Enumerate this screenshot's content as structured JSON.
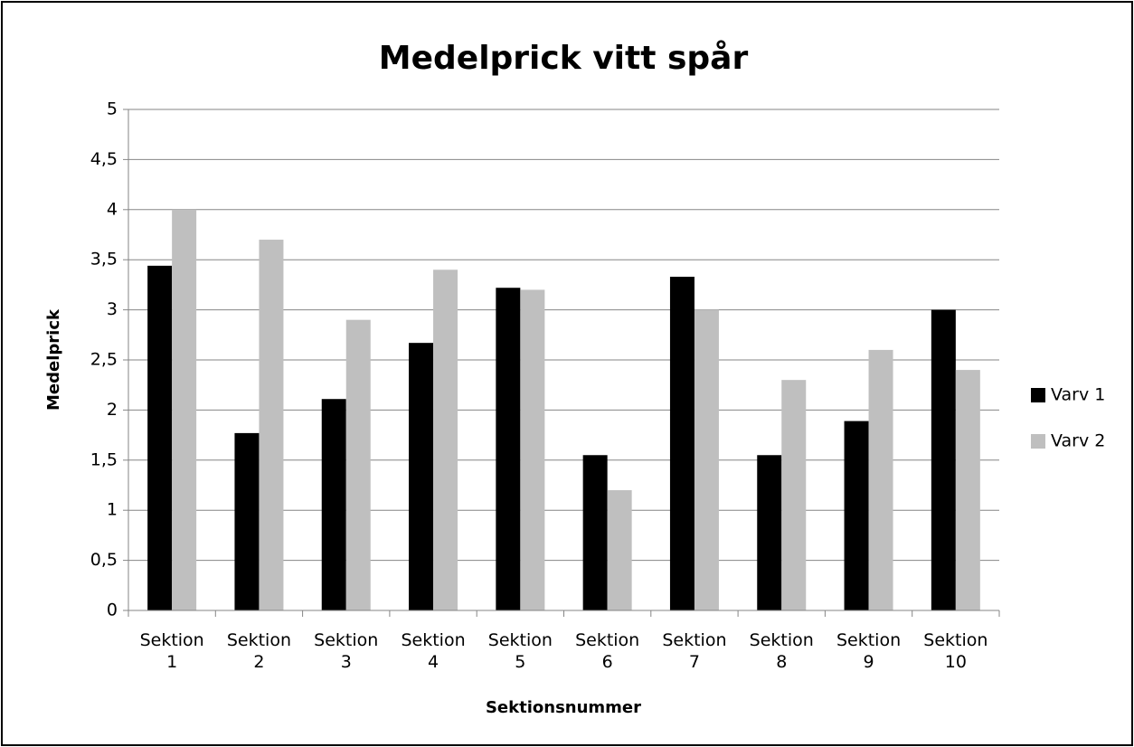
{
  "chart_data": {
    "type": "bar",
    "title": "Medelprick vitt spår",
    "x_label": "Sektionsnummer",
    "y_label": "Medelprick",
    "categories": [
      "Sektion 1",
      "Sektion 2",
      "Sektion 3",
      "Sektion 4",
      "Sektion 5",
      "Sektion 6",
      "Sektion 7",
      "Sektion 8",
      "Sektion 9",
      "Sektion 10"
    ],
    "series": [
      {
        "name": "Varv 1",
        "color": "#000000",
        "values": [
          3.44,
          1.77,
          2.11,
          2.67,
          3.22,
          1.55,
          3.33,
          1.55,
          1.89,
          3.0
        ]
      },
      {
        "name": "Varv 2",
        "color": "#bfbfbf",
        "values": [
          4.0,
          3.7,
          2.9,
          3.4,
          3.2,
          1.2,
          3.0,
          2.3,
          2.6,
          2.4
        ]
      }
    ],
    "ylim": [
      0,
      5
    ],
    "yticks": [
      0,
      {
        "value": 0.5,
        "label": "0,5"
      },
      1,
      {
        "value": 1.5,
        "label": "1,5"
      },
      2,
      {
        "value": 2.5,
        "label": "2,5"
      },
      3,
      {
        "value": 3.5,
        "label": "3,5"
      },
      4,
      {
        "value": 4.5,
        "label": "4,5"
      },
      5
    ],
    "grid": true,
    "legend": "right"
  }
}
